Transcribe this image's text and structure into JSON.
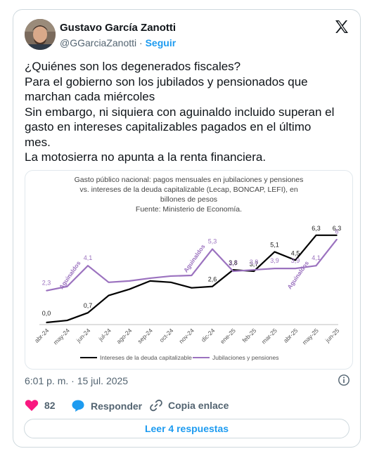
{
  "author": {
    "name": "Gustavo García Zanotti",
    "handle": "@GGarciaZanotti",
    "separator": "·",
    "follow_label": "Seguir"
  },
  "tweet": {
    "lines": [
      "¿Quiénes son los degenerados fiscales?",
      "Para el gobierno son los jubilados y pensionados que",
      "marchan cada miércoles",
      "Sin embargo, ni siquiera con aguinaldo incluido superan el",
      "gasto en intereses capitalizables pagados en el último",
      "mes.",
      "La motosierra no apunta a la renta financiera."
    ]
  },
  "chart_data": {
    "type": "line",
    "title_lines": [
      "Gasto público nacional: pagos mensuales en jubilaciones y pensiones",
      "vs. intereses de la deuda capitalizable (Lecap, BONCAP, LEFI), en",
      "billones de pesos",
      "Fuente: Ministerio de Economía."
    ],
    "categories": [
      "abr-24",
      "may-24",
      "jun-24",
      "jul-24",
      "ago-24",
      "sep-24",
      "oct-24",
      "nov-24",
      "dic-24",
      "ene-25",
      "feb-25",
      "mar-25",
      "abr-25",
      "may-25",
      "jun-25"
    ],
    "ylim": [
      0,
      7
    ],
    "grid": false,
    "legend_position": "bottom",
    "series": [
      {
        "name": "Intereses de la deuda capitalizable",
        "color": "#000000",
        "values": [
          0.0,
          0.15,
          0.7,
          1.95,
          2.4,
          3.0,
          2.9,
          2.5,
          2.6,
          3.8,
          3.7,
          5.1,
          4.5,
          6.3,
          6.3
        ],
        "labels": [
          "0,0",
          "",
          "0,7",
          "",
          "",
          "",
          "",
          "",
          "2,6",
          "3,8",
          "3,7",
          "5,1",
          "4,5",
          "6,3",
          "6,3"
        ]
      },
      {
        "name": "Jubilaciones y pensiones",
        "color": "#9b72bf",
        "values": [
          2.3,
          2.6,
          4.1,
          2.9,
          3.0,
          3.2,
          3.35,
          3.4,
          5.3,
          3.7,
          3.8,
          3.9,
          3.9,
          4.1,
          6.0
        ],
        "labels": [
          "2,3",
          "",
          "4,1",
          "",
          "",
          "",
          "",
          "",
          "5,3",
          "3,7",
          "3,8",
          "3,9",
          "3,9",
          "4,1",
          "6"
        ]
      }
    ],
    "annotations": [
      {
        "text": "Aguinaldos",
        "index": 2
      },
      {
        "text": "Aguinaldos",
        "index": 8
      },
      {
        "text": "Aguinaldos",
        "index": 13
      }
    ]
  },
  "meta": {
    "timestamp": "6:01 p. m. · 15 jul. 2025"
  },
  "actions": {
    "likes": "82",
    "reply_label": "Responder",
    "copy_label": "Copia enlace"
  },
  "read_replies_label": "Leer 4 respuestas",
  "colors": {
    "accent": "#1d9bf0",
    "like": "#f91880",
    "text": "#0f1419",
    "muted": "#536471"
  }
}
